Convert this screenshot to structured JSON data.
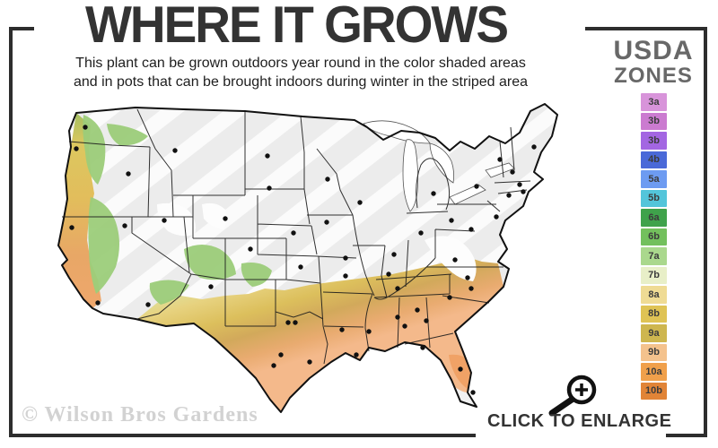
{
  "header": {
    "title": "WHERE IT GROWS",
    "subtitle_line1": "This plant can be grown outdoors year round in the color shaded areas",
    "subtitle_line2": "and in pots that can be brought indoors during winter in the striped area"
  },
  "legend": {
    "title_line1": "USDA",
    "title_line2": "ZONES",
    "zones": [
      {
        "label": "3a",
        "color": "#d894da"
      },
      {
        "label": "3b",
        "color": "#cb7bd0"
      },
      {
        "label": "3b",
        "color": "#a366e2"
      },
      {
        "label": "4b",
        "color": "#4a69d8"
      },
      {
        "label": "5a",
        "color": "#6d9bf1"
      },
      {
        "label": "5b",
        "color": "#53c5da"
      },
      {
        "label": "6a",
        "color": "#3fa24b"
      },
      {
        "label": "6b",
        "color": "#73c05d"
      },
      {
        "label": "7a",
        "color": "#aad88d"
      },
      {
        "label": "7b",
        "color": "#e8efc8"
      },
      {
        "label": "8a",
        "color": "#efdb94"
      },
      {
        "label": "8b",
        "color": "#dfc355"
      },
      {
        "label": "9a",
        "color": "#ceb64f"
      },
      {
        "label": "9b",
        "color": "#f4c28d"
      },
      {
        "label": "10a",
        "color": "#f0a04b"
      },
      {
        "label": "10b",
        "color": "#e18437"
      }
    ]
  },
  "footer": {
    "enlarge_label": "CLICK TO ENLARGE",
    "watermark": "© Wilson Bros Gardens"
  },
  "colors": {
    "frame": "#2d2d2d",
    "map_unshaded": "#ececec",
    "title_text": "#333333",
    "legend_header_text": "#686868"
  }
}
